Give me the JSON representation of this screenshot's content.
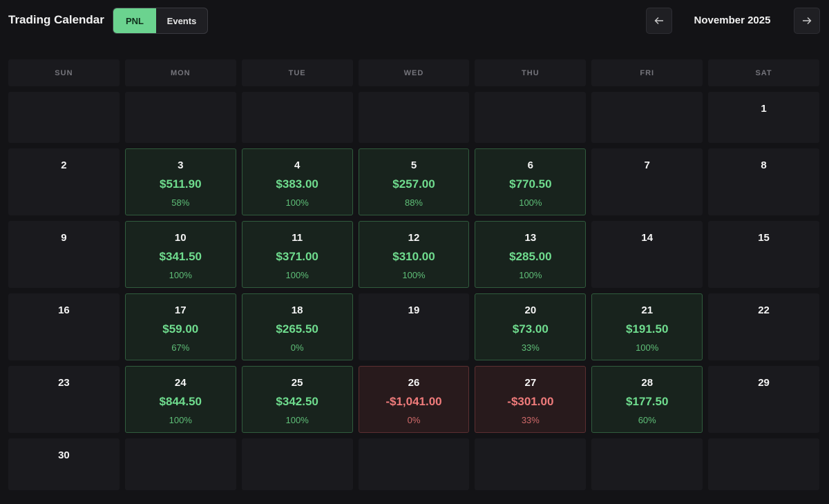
{
  "header": {
    "title": "Trading Calendar",
    "tabs": [
      "PNL",
      "Events"
    ],
    "month": "November 2025"
  },
  "calendar": {
    "weekdays": [
      "SUN",
      "MON",
      "TUE",
      "WED",
      "THU",
      "FRI",
      "SAT"
    ],
    "weeks": [
      [
        null,
        null,
        null,
        null,
        null,
        null,
        {
          "day": 1
        }
      ],
      [
        {
          "day": 2
        },
        {
          "day": 3,
          "pnl": "$511.90",
          "rate": "58%"
        },
        {
          "day": 4,
          "pnl": "$383.00",
          "rate": "100%"
        },
        {
          "day": 5,
          "pnl": "$257.00",
          "rate": "88%"
        },
        {
          "day": 6,
          "pnl": "$770.50",
          "rate": "100%"
        },
        {
          "day": 7
        },
        {
          "day": 8
        }
      ],
      [
        {
          "day": 9
        },
        {
          "day": 10,
          "pnl": "$341.50",
          "rate": "100%"
        },
        {
          "day": 11,
          "pnl": "$371.00",
          "rate": "100%"
        },
        {
          "day": 12,
          "pnl": "$310.00",
          "rate": "100%"
        },
        {
          "day": 13,
          "pnl": "$285.00",
          "rate": "100%"
        },
        {
          "day": 14
        },
        {
          "day": 15
        }
      ],
      [
        {
          "day": 16
        },
        {
          "day": 17,
          "pnl": "$59.00",
          "rate": "67%"
        },
        {
          "day": 18,
          "pnl": "$265.50",
          "rate": "0%"
        },
        {
          "day": 19
        },
        {
          "day": 20,
          "pnl": "$73.00",
          "rate": "33%"
        },
        {
          "day": 21,
          "pnl": "$191.50",
          "rate": "100%"
        },
        {
          "day": 22
        }
      ],
      [
        {
          "day": 23
        },
        {
          "day": 24,
          "pnl": "$844.50",
          "rate": "100%"
        },
        {
          "day": 25,
          "pnl": "$342.50",
          "rate": "100%"
        },
        {
          "day": 26,
          "pnl": "-$1,041.00",
          "rate": "0%"
        },
        {
          "day": 27,
          "pnl": "-$301.00",
          "rate": "33%"
        },
        {
          "day": 28,
          "pnl": "$177.50",
          "rate": "60%"
        },
        {
          "day": 29
        }
      ],
      [
        {
          "day": 30
        },
        null,
        null,
        null,
        null,
        null,
        null
      ]
    ]
  }
}
